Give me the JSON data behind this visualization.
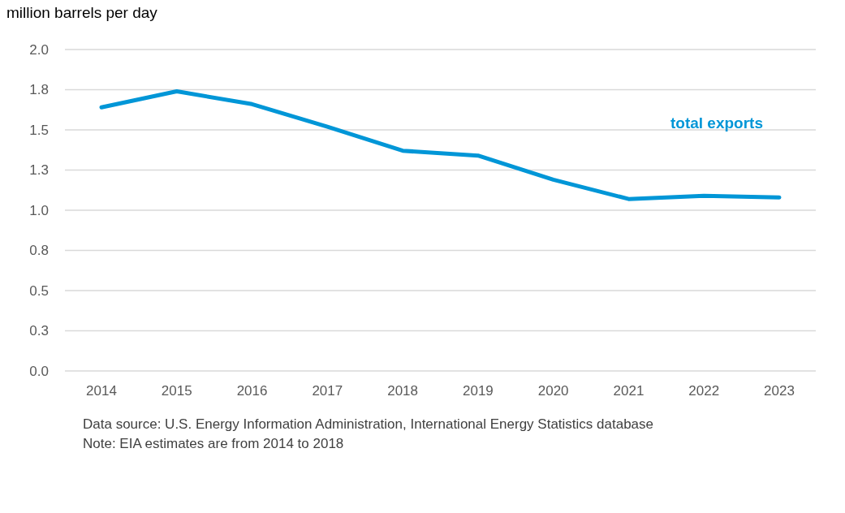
{
  "chart_data": {
    "type": "line",
    "ylabel": "million barrels per day",
    "categories": [
      "2014",
      "2015",
      "2016",
      "2017",
      "2018",
      "2019",
      "2020",
      "2021",
      "2022",
      "2023"
    ],
    "series": [
      {
        "name": "total exports",
        "color": "#0096d7",
        "values": [
          1.64,
          1.74,
          1.66,
          1.52,
          1.37,
          1.34,
          1.19,
          1.07,
          1.09,
          1.08
        ]
      }
    ],
    "ylim": [
      0,
      2
    ],
    "yticks": [
      {
        "value": 0,
        "label": "0.0"
      },
      {
        "value": 0.25,
        "label": "0.3"
      },
      {
        "value": 0.5,
        "label": "0.5"
      },
      {
        "value": 0.75,
        "label": "0.8"
      },
      {
        "value": 1,
        "label": "1.0"
      },
      {
        "value": 1.25,
        "label": "1.3"
      },
      {
        "value": 1.5,
        "label": "1.5"
      },
      {
        "value": 1.75,
        "label": "1.8"
      },
      {
        "value": 2,
        "label": "2.0"
      }
    ],
    "grid": "y",
    "legend": false,
    "marker": "none",
    "line_style": "solid",
    "annotations": [
      "Data source: U.S. Energy Information Administration, International Energy Statistics database",
      "Note: EIA estimates are from 2014 to 2018"
    ]
  }
}
